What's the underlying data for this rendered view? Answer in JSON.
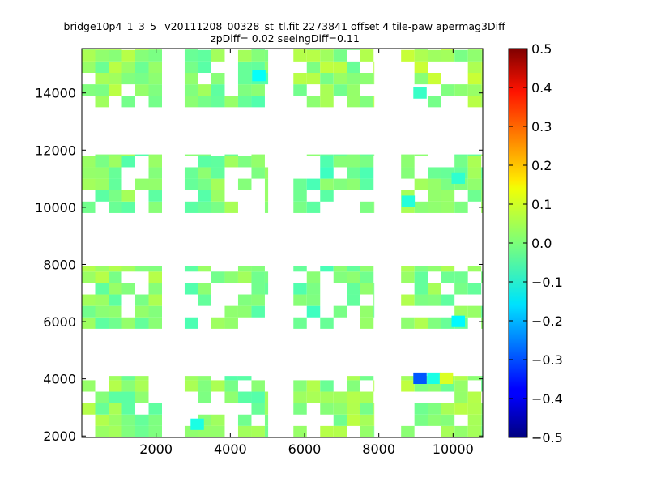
{
  "chart_data": {
    "type": "heatmap",
    "title_line1": "_bridge10p4_1_3_5_ v20111208_00328_st_tl.fit 2273841 offset 4 tile-paw apermag3Diff",
    "title_line2": "zpDiff= 0.02 seeingDiff=0.11",
    "xlabel": "",
    "ylabel": "",
    "xlim": [
      0,
      10800
    ],
    "ylim": [
      1950,
      15550
    ],
    "x_ticks": [
      2000,
      4000,
      6000,
      8000,
      10000
    ],
    "x_tick_labels": [
      "2000",
      "4000",
      "6000",
      "8000",
      "10000"
    ],
    "y_ticks": [
      2000,
      4000,
      6000,
      8000,
      10000,
      12000,
      14000
    ],
    "y_tick_labels": [
      "2000",
      "4000",
      "6000",
      "8000",
      "10000",
      "12000",
      "14000"
    ],
    "colorbar": {
      "colormap": "jet",
      "vmin": -0.5,
      "vmax": 0.5,
      "ticks": [
        0.5,
        0.4,
        0.3,
        0.2,
        0.1,
        0.0,
        -0.1,
        -0.2,
        -0.3,
        -0.4,
        -0.5
      ],
      "tick_labels": [
        "0.5",
        "0.4",
        "0.3",
        "0.2",
        "0.1",
        "0.0",
        "−0.1",
        "−0.2",
        "−0.3",
        "−0.4",
        "−0.5"
      ]
    },
    "cell_size": [
      360,
      400
    ],
    "regions": [
      {
        "name": "detector-row4-col1",
        "x0": 0,
        "x1": 2160,
        "y0": 13500,
        "y1": 15550,
        "base": 0.02
      },
      {
        "name": "detector-row4-col2",
        "x0": 2770,
        "x1": 5020,
        "y0": 13500,
        "y1": 15550,
        "base": 0.0
      },
      {
        "name": "detector-row4-col3",
        "x0": 5700,
        "x1": 7880,
        "y0": 13500,
        "y1": 15550,
        "base": 0.02
      },
      {
        "name": "detector-row4-col4",
        "x0": 8600,
        "x1": 10800,
        "y0": 13500,
        "y1": 15550,
        "base": 0.03
      },
      {
        "name": "detector-row3-col1",
        "x0": 0,
        "x1": 2160,
        "y0": 9800,
        "y1": 11850,
        "base": 0.0
      },
      {
        "name": "detector-row3-col2",
        "x0": 2770,
        "x1": 5020,
        "y0": 9800,
        "y1": 11850,
        "base": 0.0
      },
      {
        "name": "detector-row3-col3",
        "x0": 5700,
        "x1": 7880,
        "y0": 9800,
        "y1": 11850,
        "base": -0.02
      },
      {
        "name": "detector-row3-col4",
        "x0": 8600,
        "x1": 10800,
        "y0": 9800,
        "y1": 11850,
        "base": 0.01
      },
      {
        "name": "detector-row2-col1",
        "x0": 0,
        "x1": 2160,
        "y0": 5750,
        "y1": 7950,
        "base": 0.01
      },
      {
        "name": "detector-row2-col2",
        "x0": 2770,
        "x1": 5020,
        "y0": 5750,
        "y1": 7950,
        "base": -0.01
      },
      {
        "name": "detector-row2-col3",
        "x0": 5700,
        "x1": 7880,
        "y0": 5750,
        "y1": 7950,
        "base": -0.02
      },
      {
        "name": "detector-row2-col4",
        "x0": 8600,
        "x1": 10800,
        "y0": 5750,
        "y1": 7950,
        "base": 0.01
      },
      {
        "name": "detector-row1-col1",
        "x0": 0,
        "x1": 2160,
        "y0": 1950,
        "y1": 4100,
        "base": 0.01
      },
      {
        "name": "detector-row1-col2",
        "x0": 2770,
        "x1": 5020,
        "y0": 1950,
        "y1": 4100,
        "base": 0.0
      },
      {
        "name": "detector-row1-col3",
        "x0": 5700,
        "x1": 7880,
        "y0": 1950,
        "y1": 4100,
        "base": 0.02
      },
      {
        "name": "detector-row1-col4",
        "x0": 8600,
        "x1": 10800,
        "y0": 1950,
        "y1": 4100,
        "base": 0.02
      }
    ],
    "outliers": [
      {
        "x": 8930,
        "y": 3820,
        "value": -0.29
      },
      {
        "x": 9300,
        "y": 3820,
        "value": -0.1
      },
      {
        "x": 9640,
        "y": 3820,
        "value": 0.09
      },
      {
        "x": 9960,
        "y": 5810,
        "value": -0.13
      },
      {
        "x": 4590,
        "y": 14410,
        "value": -0.12
      },
      {
        "x": 2930,
        "y": 2210,
        "value": -0.1
      },
      {
        "x": 8930,
        "y": 13800,
        "value": -0.07
      },
      {
        "x": 8610,
        "y": 10010,
        "value": -0.09
      },
      {
        "x": 9960,
        "y": 10820,
        "value": -0.08
      }
    ]
  }
}
